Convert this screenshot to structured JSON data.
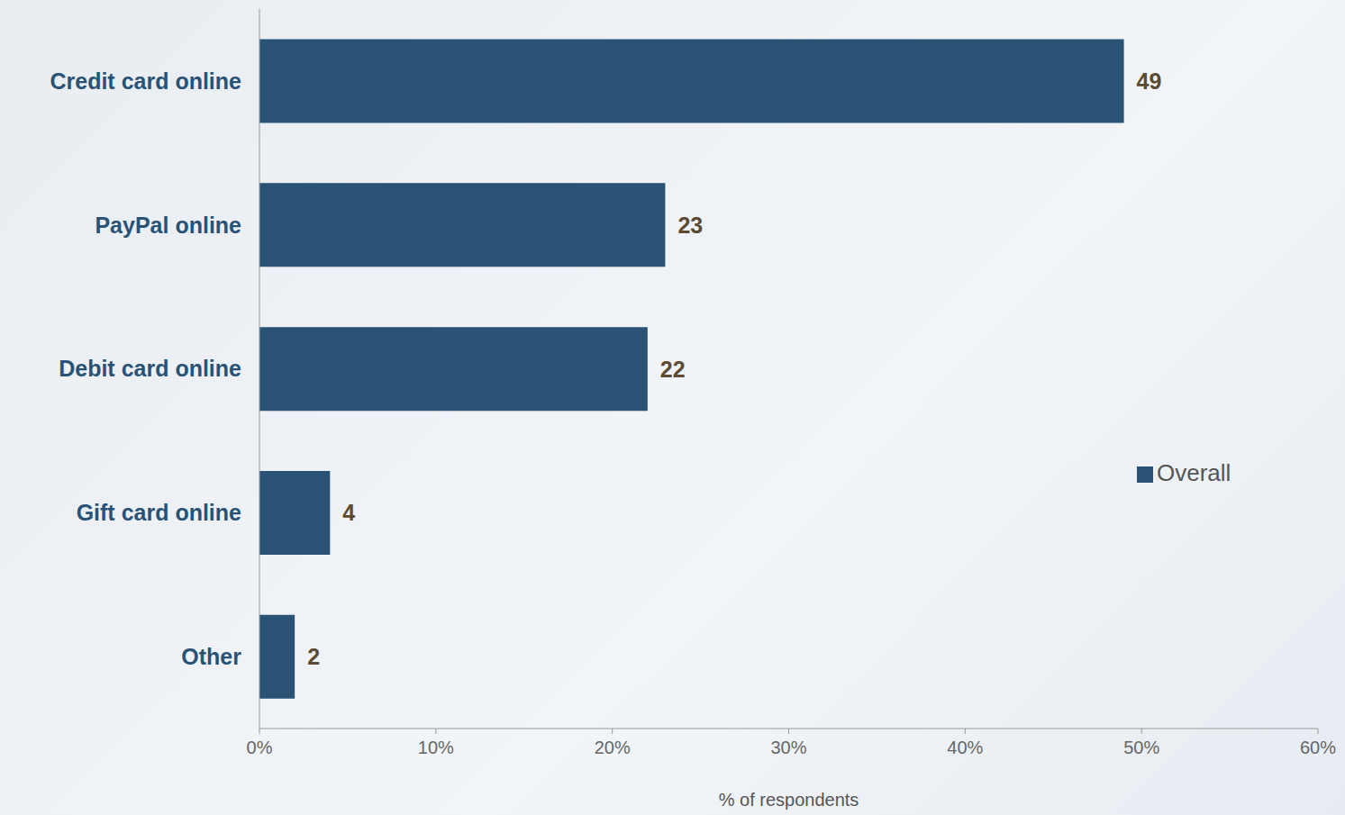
{
  "chart_data": {
    "type": "bar",
    "orientation": "horizontal",
    "categories": [
      "Credit card online",
      "PayPal online",
      "Debit card online",
      "Gift card online",
      "Other"
    ],
    "series": [
      {
        "name": "Overall",
        "color": "#2a5275",
        "values": [
          49,
          23,
          22,
          4,
          2
        ]
      }
    ],
    "xlabel": "% of respondents",
    "xlim": [
      0,
      60
    ],
    "xticks": [
      {
        "value": 0,
        "label": "0%"
      },
      {
        "value": 10,
        "label": "10%"
      },
      {
        "value": 20,
        "label": "20%"
      },
      {
        "value": 30,
        "label": "30%"
      },
      {
        "value": 40,
        "label": "40%"
      },
      {
        "value": 50,
        "label": "50%"
      },
      {
        "value": 60,
        "label": "60%"
      }
    ],
    "data_labels": true,
    "legend": "right",
    "grid": false
  }
}
